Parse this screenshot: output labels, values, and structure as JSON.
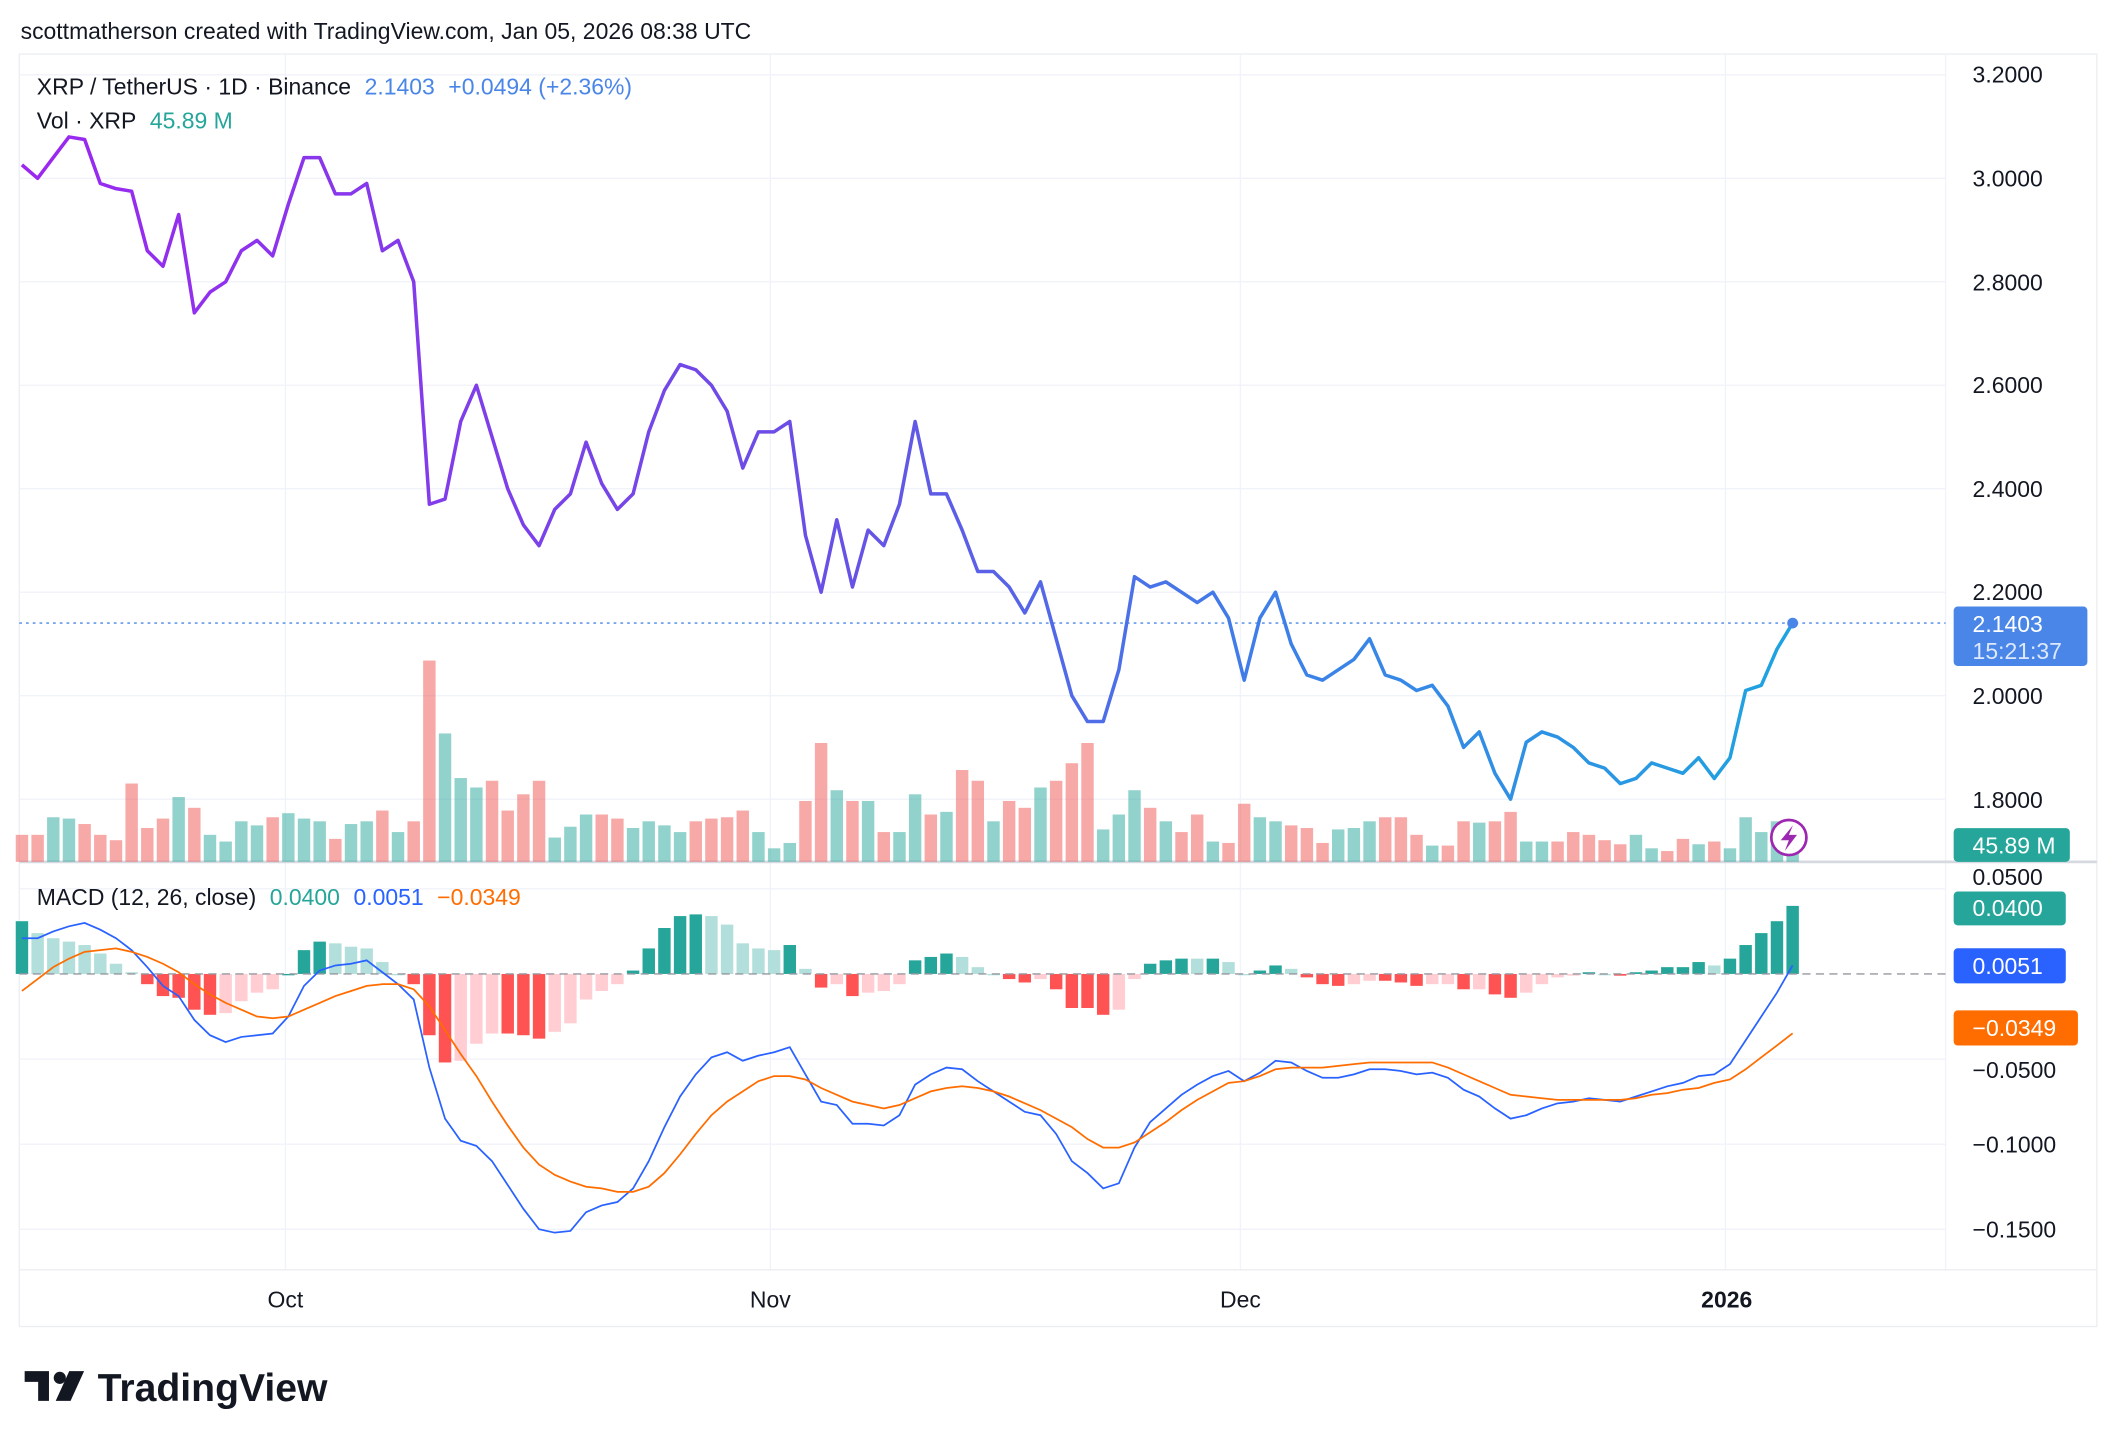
{
  "header": {
    "credit": "scottmatherson created with TradingView.com, Jan 05, 2026 08:38 UTC"
  },
  "legend": {
    "symbol": "XRP / TetherUS · 1D · Binance",
    "last": "2.1403",
    "change": "+0.0494 (+2.36%)",
    "vol_label": "Vol · XRP",
    "vol_value": "45.89 M",
    "macd_label": "MACD (12, 26, close)",
    "macd_hist": "0.0400",
    "macd_line": "0.0051",
    "macd_signal": "−0.0349"
  },
  "price_axis": {
    "ticks": [
      "3.2000",
      "3.0000",
      "2.8000",
      "2.6000",
      "2.4000",
      "2.2000",
      "2.0000",
      "1.8000"
    ],
    "last_price_label": "2.1403",
    "countdown": "15:21:37",
    "volume_label": "45.89 M"
  },
  "macd_axis": {
    "ticks": [
      "0.0500",
      "−0.0500",
      "−0.1000",
      "−0.1500"
    ],
    "hist_label": "0.0400",
    "macd_label": "0.0051",
    "signal_label": "−0.0349"
  },
  "time_axis": {
    "ticks": [
      "Oct",
      "Nov",
      "Dec",
      "2026"
    ]
  },
  "brand": {
    "logo_text": "TradingView"
  },
  "colors": {
    "up": "#26a69a",
    "down": "#ef5350",
    "macd": "#2962ff",
    "signal": "#ff6d00",
    "price_start": "#9c27f0",
    "price_end": "#1fa3e0",
    "last_price": "#4a86e8"
  },
  "icons": {
    "alert": "lightning-icon"
  },
  "chart_data": [
    {
      "type": "line",
      "title": "XRP / TetherUS · 1D · Binance",
      "price_range": [
        1.7,
        3.25
      ],
      "grid": true,
      "x": [
        "2025-09-14",
        "2025-09-15",
        "2025-09-16",
        "2025-09-17",
        "2025-09-18",
        "2025-09-19",
        "2025-09-20",
        "2025-09-21",
        "2025-09-22",
        "2025-09-23",
        "2025-09-24",
        "2025-09-25",
        "2025-09-26",
        "2025-09-27",
        "2025-09-28",
        "2025-09-29",
        "2025-09-30",
        "2025-10-01",
        "2025-10-02",
        "2025-10-03",
        "2025-10-04",
        "2025-10-05",
        "2025-10-06",
        "2025-10-07",
        "2025-10-08",
        "2025-10-09",
        "2025-10-10",
        "2025-10-11",
        "2025-10-12",
        "2025-10-13",
        "2025-10-14",
        "2025-10-15",
        "2025-10-16",
        "2025-10-17",
        "2025-10-18",
        "2025-10-19",
        "2025-10-20",
        "2025-10-21",
        "2025-10-22",
        "2025-10-23",
        "2025-10-24",
        "2025-10-25",
        "2025-10-26",
        "2025-10-27",
        "2025-10-28",
        "2025-10-29",
        "2025-10-30",
        "2025-10-31",
        "2025-11-01",
        "2025-11-02",
        "2025-11-03",
        "2025-11-04",
        "2025-11-05",
        "2025-11-06",
        "2025-11-07",
        "2025-11-08",
        "2025-11-09",
        "2025-11-10",
        "2025-11-11",
        "2025-11-12",
        "2025-11-13",
        "2025-11-14",
        "2025-11-15",
        "2025-11-16",
        "2025-11-17",
        "2025-11-18",
        "2025-11-19",
        "2025-11-20",
        "2025-11-21",
        "2025-11-22",
        "2025-11-23",
        "2025-11-24",
        "2025-11-25",
        "2025-11-26",
        "2025-11-27",
        "2025-11-28",
        "2025-11-29",
        "2025-11-30",
        "2025-12-01",
        "2025-12-02",
        "2025-12-03",
        "2025-12-04",
        "2025-12-05",
        "2025-12-06",
        "2025-12-07",
        "2025-12-08",
        "2025-12-09",
        "2025-12-10",
        "2025-12-11",
        "2025-12-12",
        "2025-12-13",
        "2025-12-14",
        "2025-12-15",
        "2025-12-16",
        "2025-12-17",
        "2025-12-18",
        "2025-12-19",
        "2025-12-20",
        "2025-12-21",
        "2025-12-22",
        "2025-12-23",
        "2025-12-24",
        "2025-12-25",
        "2025-12-26",
        "2025-12-27",
        "2025-12-28",
        "2025-12-29",
        "2025-12-30",
        "2025-12-31",
        "2026-01-01",
        "2026-01-02",
        "2026-01-03",
        "2026-01-04",
        "2026-01-05"
      ],
      "close": [
        3.026,
        3.0,
        3.04,
        3.08,
        3.075,
        2.99,
        2.98,
        2.975,
        2.86,
        2.83,
        2.93,
        2.74,
        2.78,
        2.8,
        2.86,
        2.88,
        2.85,
        2.95,
        3.04,
        3.04,
        2.97,
        2.97,
        2.99,
        2.86,
        2.88,
        2.8,
        2.37,
        2.38,
        2.53,
        2.6,
        2.5,
        2.4,
        2.33,
        2.29,
        2.36,
        2.39,
        2.49,
        2.41,
        2.36,
        2.39,
        2.51,
        2.59,
        2.64,
        2.63,
        2.6,
        2.55,
        2.44,
        2.51,
        2.51,
        2.53,
        2.31,
        2.2,
        2.34,
        2.21,
        2.32,
        2.29,
        2.37,
        2.53,
        2.39,
        2.39,
        2.32,
        2.24,
        2.24,
        2.21,
        2.16,
        2.22,
        2.11,
        2.0,
        1.95,
        1.95,
        2.05,
        2.23,
        2.21,
        2.22,
        2.2,
        2.18,
        2.2,
        2.15,
        2.03,
        2.15,
        2.2,
        2.1,
        2.04,
        2.03,
        2.05,
        2.07,
        2.11,
        2.04,
        2.03,
        2.01,
        2.02,
        1.98,
        1.9,
        1.93,
        1.85,
        1.8,
        1.91,
        1.93,
        1.92,
        1.9,
        1.87,
        1.86,
        1.83,
        1.84,
        1.87,
        1.86,
        1.85,
        1.88,
        1.84,
        1.88,
        2.01,
        2.02,
        2.09,
        2.1403
      ],
      "volume_millions": [
        30.6,
        30.6,
        50.5,
        49,
        42.8,
        30.6,
        24.5,
        88.7,
        38.3,
        49,
        73.4,
        61.2,
        30.6,
        23,
        45.9,
        41.3,
        50.5,
        55.1,
        49,
        45.9,
        26,
        42.8,
        45.9,
        58.1,
        33.7,
        45.9,
        228,
        145.4,
        94.9,
        84.2,
        91.8,
        58.1,
        76.5,
        91.8,
        27.5,
        39.8,
        53.6,
        53.6,
        49,
        38.3,
        45.9,
        41.3,
        33.7,
        45.9,
        49,
        50.5,
        58.1,
        33.7,
        15.3,
        21.4,
        68.9,
        134.6,
        81.1,
        68.9,
        68.9,
        33.7,
        33.7,
        76.5,
        53.6,
        56.6,
        104,
        91.8,
        45.9,
        68.9,
        61.2,
        84.2,
        91.8,
        111.7,
        134.6,
        36.7,
        53.6,
        81.1,
        61.2,
        45.9,
        33.7,
        53.6,
        23,
        21.4,
        65.8,
        50.5,
        45.9,
        41.3,
        38.3,
        21.4,
        36.7,
        38.3,
        45.9,
        50.5,
        50.5,
        30.6,
        18.4,
        18.4,
        45.9,
        44.4,
        45.9,
        56.6,
        23,
        23,
        23,
        33.7,
        30.6,
        24.5,
        19.9,
        30.6,
        15.3,
        12.2,
        26,
        19.9,
        23,
        15.3,
        50.5,
        33.7,
        45.9,
        45.89
      ]
    },
    {
      "type": "line",
      "title": "MACD (12, 26, close)",
      "ylim": [
        -0.17,
        0.065
      ],
      "series": [
        {
          "name": "MACD",
          "values": [
            0.021,
            0.021,
            0.025,
            0.028,
            0.03,
            0.026,
            0.021,
            0.014,
            0.004,
            -0.007,
            -0.013,
            -0.027,
            -0.036,
            -0.04,
            -0.037,
            -0.036,
            -0.035,
            -0.025,
            -0.007,
            0.002,
            0.005,
            0.006,
            0.008,
            0.001,
            -0.006,
            -0.015,
            -0.055,
            -0.085,
            -0.098,
            -0.101,
            -0.11,
            -0.124,
            -0.138,
            -0.15,
            -0.152,
            -0.151,
            -0.14,
            -0.136,
            -0.134,
            -0.126,
            -0.11,
            -0.09,
            -0.072,
            -0.059,
            -0.049,
            -0.046,
            -0.051,
            -0.048,
            -0.046,
            -0.043,
            -0.059,
            -0.075,
            -0.077,
            -0.088,
            -0.088,
            -0.089,
            -0.083,
            -0.065,
            -0.059,
            -0.055,
            -0.056,
            -0.063,
            -0.069,
            -0.075,
            -0.081,
            -0.083,
            -0.094,
            -0.11,
            -0.117,
            -0.126,
            -0.123,
            -0.102,
            -0.087,
            -0.079,
            -0.071,
            -0.065,
            -0.06,
            -0.057,
            -0.063,
            -0.058,
            -0.051,
            -0.052,
            -0.057,
            -0.061,
            -0.061,
            -0.059,
            -0.056,
            -0.056,
            -0.057,
            -0.059,
            -0.058,
            -0.061,
            -0.068,
            -0.072,
            -0.079,
            -0.085,
            -0.083,
            -0.079,
            -0.076,
            -0.075,
            -0.073,
            -0.074,
            -0.075,
            -0.072,
            -0.069,
            -0.066,
            -0.064,
            -0.06,
            -0.059,
            -0.053,
            -0.039,
            -0.025,
            -0.011,
            0.0051
          ]
        },
        {
          "name": "Signal",
          "values": [
            -0.01,
            -0.003,
            0.004,
            0.009,
            0.013,
            0.014,
            0.015,
            0.013,
            0.01,
            0.006,
            0.001,
            -0.006,
            -0.012,
            -0.017,
            -0.021,
            -0.025,
            -0.026,
            -0.025,
            -0.021,
            -0.017,
            -0.013,
            -0.01,
            -0.007,
            -0.006,
            -0.006,
            -0.009,
            -0.019,
            -0.033,
            -0.047,
            -0.06,
            -0.075,
            -0.089,
            -0.102,
            -0.112,
            -0.118,
            -0.122,
            -0.125,
            -0.126,
            -0.128,
            -0.128,
            -0.125,
            -0.117,
            -0.106,
            -0.094,
            -0.083,
            -0.075,
            -0.069,
            -0.063,
            -0.06,
            -0.06,
            -0.062,
            -0.067,
            -0.071,
            -0.075,
            -0.077,
            -0.079,
            -0.077,
            -0.073,
            -0.069,
            -0.067,
            -0.066,
            -0.067,
            -0.069,
            -0.072,
            -0.076,
            -0.08,
            -0.085,
            -0.09,
            -0.097,
            -0.102,
            -0.102,
            -0.099,
            -0.093,
            -0.087,
            -0.08,
            -0.074,
            -0.069,
            -0.064,
            -0.063,
            -0.06,
            -0.056,
            -0.055,
            -0.055,
            -0.055,
            -0.054,
            -0.053,
            -0.052,
            -0.052,
            -0.052,
            -0.052,
            -0.052,
            -0.055,
            -0.059,
            -0.063,
            -0.067,
            -0.071,
            -0.072,
            -0.073,
            -0.074,
            -0.074,
            -0.074,
            -0.074,
            -0.074,
            -0.073,
            -0.071,
            -0.07,
            -0.068,
            -0.067,
            -0.064,
            -0.062,
            -0.056,
            -0.049,
            -0.042,
            -0.0349
          ]
        }
      ]
    }
  ]
}
